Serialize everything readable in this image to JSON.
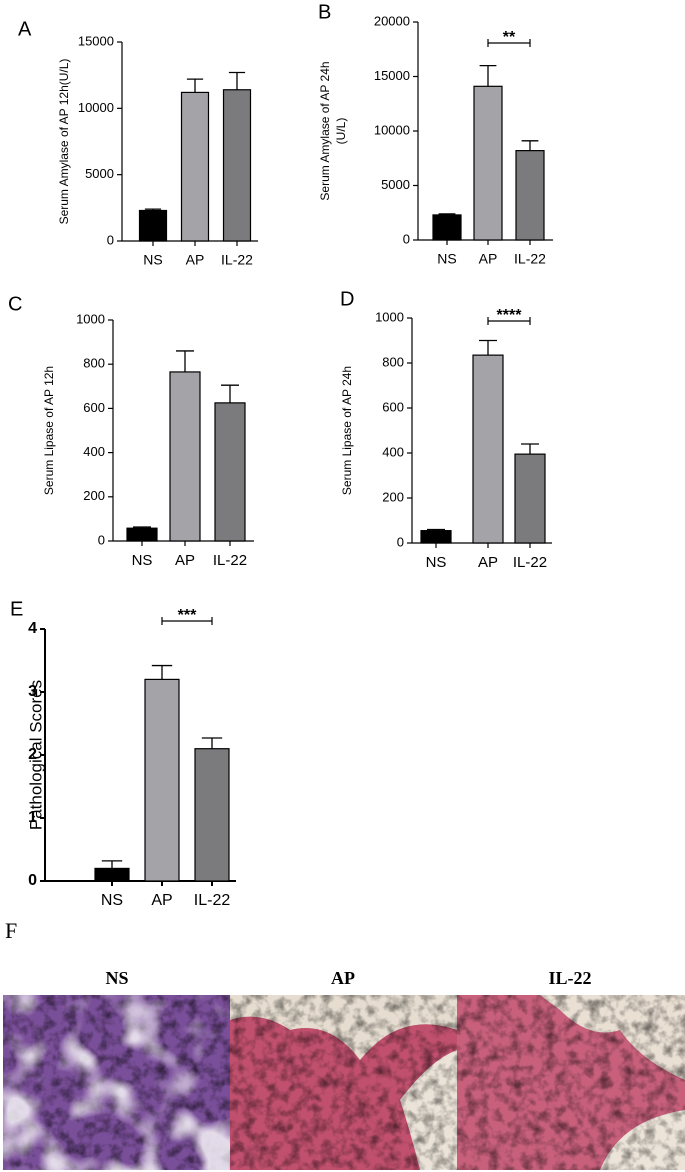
{
  "chart_data": [
    {
      "type": "bar",
      "panel_label": "A",
      "y_label": [
        "Serum Amylase of AP 12h(U/L)"
      ],
      "categories": [
        "NS",
        "AP",
        "IL-22"
      ],
      "values": [
        2300,
        11200,
        11400
      ],
      "errors": [
        100,
        1000,
        1300
      ],
      "colors": [
        "#000000",
        "#a3a3a8",
        "#7b7b7d"
      ],
      "ylim": [
        0,
        15000
      ],
      "yticks": [
        0,
        5000,
        10000,
        15000
      ]
    },
    {
      "type": "bar",
      "panel_label": "B",
      "y_label": [
        "Serum Amylase of AP 24h",
        "(U/L)"
      ],
      "categories": [
        "NS",
        "AP",
        "IL-22"
      ],
      "values": [
        2300,
        14100,
        8200
      ],
      "errors": [
        100,
        1900,
        900
      ],
      "colors": [
        "#000000",
        "#a3a3a8",
        "#7b7b7d"
      ],
      "ylim": [
        0,
        20000
      ],
      "yticks": [
        0,
        5000,
        10000,
        15000,
        20000
      ],
      "significance": "**"
    },
    {
      "type": "bar",
      "panel_label": "C",
      "y_label": [
        "Serum Lipase of AP 12h"
      ],
      "categories": [
        "NS",
        "AP",
        "IL-22"
      ],
      "values": [
        58,
        765,
        625
      ],
      "errors": [
        5,
        95,
        80
      ],
      "colors": [
        "#000000",
        "#a3a3a8",
        "#7b7b7d"
      ],
      "ylim": [
        0,
        1000
      ],
      "yticks": [
        0,
        200,
        400,
        600,
        800,
        1000
      ]
    },
    {
      "type": "bar",
      "panel_label": "D",
      "y_label": [
        "Serum Lipase of AP 24h"
      ],
      "categories": [
        "NS",
        "AP",
        "IL-22"
      ],
      "values": [
        55,
        835,
        395
      ],
      "errors": [
        5,
        65,
        45
      ],
      "colors": [
        "#000000",
        "#a3a3a8",
        "#7b7b7d"
      ],
      "ylim": [
        0,
        1000
      ],
      "yticks": [
        0,
        200,
        400,
        600,
        800,
        1000
      ],
      "significance": "****"
    },
    {
      "type": "bar",
      "panel_label": "E",
      "y_label": [
        "Pathological Scores"
      ],
      "categories": [
        "NS",
        "AP",
        "IL-22"
      ],
      "values": [
        0.2,
        3.2,
        2.1
      ],
      "errors": [
        0.12,
        0.22,
        0.17
      ],
      "colors": [
        "#000000",
        "#a3a3a8",
        "#7b7b7d"
      ],
      "ylim": [
        0,
        4
      ],
      "yticks": [
        0,
        1,
        2,
        3,
        4
      ],
      "significance": "***"
    }
  ],
  "panel_f": {
    "label": "F",
    "images": [
      "NS",
      "AP",
      "IL-22"
    ]
  }
}
